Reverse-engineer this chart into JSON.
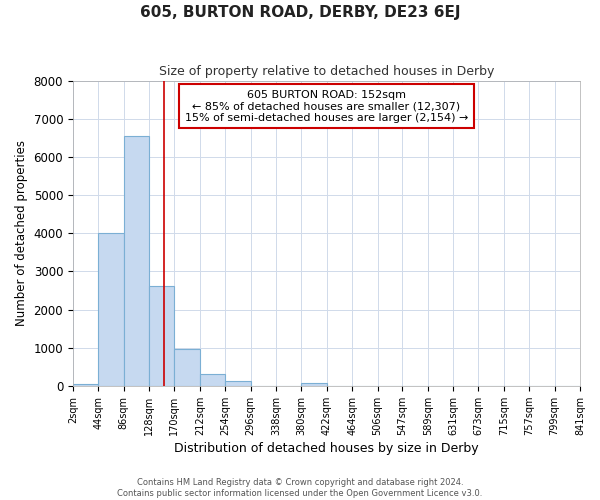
{
  "title": "605, BURTON ROAD, DERBY, DE23 6EJ",
  "subtitle": "Size of property relative to detached houses in Derby",
  "xlabel": "Distribution of detached houses by size in Derby",
  "ylabel": "Number of detached properties",
  "bin_labels": [
    "2sqm",
    "44sqm",
    "86sqm",
    "128sqm",
    "170sqm",
    "212sqm",
    "254sqm",
    "296sqm",
    "338sqm",
    "380sqm",
    "422sqm",
    "464sqm",
    "506sqm",
    "547sqm",
    "589sqm",
    "631sqm",
    "673sqm",
    "715sqm",
    "757sqm",
    "799sqm",
    "841sqm"
  ],
  "bin_edges": [
    2,
    44,
    86,
    128,
    170,
    212,
    254,
    296,
    338,
    380,
    422,
    464,
    506,
    547,
    589,
    631,
    673,
    715,
    757,
    799,
    841
  ],
  "bar_heights": [
    55,
    4000,
    6550,
    2620,
    960,
    320,
    130,
    0,
    0,
    80,
    0,
    0,
    0,
    0,
    0,
    0,
    0,
    0,
    0,
    0
  ],
  "bar_facecolor": "#c6d9f0",
  "bar_edgecolor": "#7bafd4",
  "bg_color": "#ffffff",
  "plot_bg_color": "#ffffff",
  "grid_color": "#d0daea",
  "ylim": [
    0,
    8000
  ],
  "yticks": [
    0,
    1000,
    2000,
    3000,
    4000,
    5000,
    6000,
    7000,
    8000
  ],
  "property_line_x": 152,
  "property_line_color": "#cc0000",
  "annotation_title": "605 BURTON ROAD: 152sqm",
  "annotation_line1": "← 85% of detached houses are smaller (12,307)",
  "annotation_line2": "15% of semi-detached houses are larger (2,154) →",
  "annotation_box_edgecolor": "#cc0000",
  "footer_line1": "Contains HM Land Registry data © Crown copyright and database right 2024.",
  "footer_line2": "Contains public sector information licensed under the Open Government Licence v3.0."
}
